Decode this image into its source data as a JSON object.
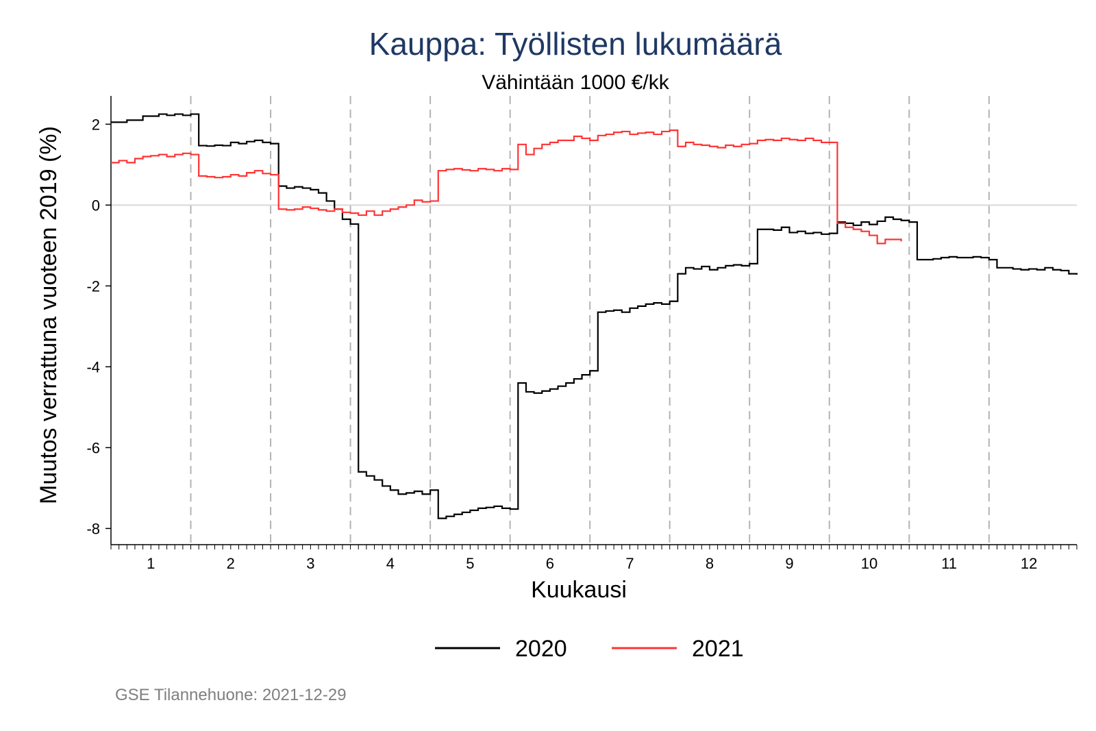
{
  "chart_data": {
    "type": "line",
    "title": "Kauppa: Työllisten lukumäärä",
    "subtitle": "Vähintään 1000 €/kk",
    "xlabel": "Kuukausi",
    "ylabel": "Muutos verrattuna vuoteen 2019 (%)",
    "x_ticks": [
      "1",
      "2",
      "3",
      "4",
      "5",
      "6",
      "7",
      "8",
      "9",
      "10",
      "11",
      "12"
    ],
    "y_ticks": [
      2,
      0,
      -2,
      -4,
      -6,
      -8
    ],
    "xlim": [
      0.5,
      12.6
    ],
    "ylim": [
      -8.4,
      2.7
    ],
    "grid": false,
    "reference_line": 0,
    "month_separators": "dashed",
    "legend_position": "bottom",
    "note": "GSE Tilannehuone: 2021-12-29",
    "series": [
      {
        "name": "2020",
        "color": "#000000",
        "x": [
          0.5,
          0.6,
          0.7,
          0.8,
          0.9,
          1.0,
          1.1,
          1.2,
          1.3,
          1.4,
          1.5,
          1.6,
          1.7,
          1.8,
          1.9,
          2.0,
          2.1,
          2.2,
          2.3,
          2.4,
          2.5,
          2.6,
          2.7,
          2.8,
          2.9,
          3.0,
          3.1,
          3.2,
          3.3,
          3.4,
          3.5,
          3.6,
          3.7,
          3.8,
          3.9,
          4.0,
          4.1,
          4.2,
          4.3,
          4.4,
          4.5,
          4.6,
          4.7,
          4.8,
          4.9,
          5.0,
          5.1,
          5.2,
          5.3,
          5.4,
          5.5,
          5.6,
          5.7,
          5.8,
          5.9,
          6.0,
          6.1,
          6.2,
          6.3,
          6.4,
          6.5,
          6.6,
          6.7,
          6.8,
          6.9,
          7.0,
          7.1,
          7.2,
          7.3,
          7.4,
          7.5,
          7.6,
          7.7,
          7.8,
          7.9,
          8.0,
          8.1,
          8.2,
          8.3,
          8.4,
          8.5,
          8.6,
          8.7,
          8.8,
          8.9,
          9.0,
          9.1,
          9.2,
          9.3,
          9.4,
          9.5,
          9.6,
          9.7,
          9.8,
          9.9,
          10.0,
          10.1,
          10.2,
          10.3,
          10.4,
          10.5,
          10.6,
          10.7,
          10.8,
          10.9,
          11.0,
          11.1,
          11.2,
          11.3,
          11.4,
          11.5,
          11.6,
          11.7,
          11.8,
          11.9,
          12.0,
          12.1,
          12.2,
          12.3,
          12.4,
          12.5,
          12.6
        ],
        "values": [
          2.05,
          2.05,
          2.1,
          2.1,
          2.2,
          2.2,
          2.25,
          2.22,
          2.25,
          2.22,
          2.25,
          1.47,
          1.46,
          1.48,
          1.47,
          1.55,
          1.52,
          1.57,
          1.6,
          1.55,
          1.52,
          0.47,
          0.42,
          0.45,
          0.42,
          0.38,
          0.3,
          0.1,
          -0.1,
          -0.35,
          -0.47,
          -6.6,
          -6.7,
          -6.8,
          -6.95,
          -7.05,
          -7.15,
          -7.12,
          -7.08,
          -7.15,
          -7.05,
          -7.75,
          -7.7,
          -7.65,
          -7.6,
          -7.55,
          -7.5,
          -7.48,
          -7.45,
          -7.5,
          -7.52,
          -4.4,
          -4.62,
          -4.65,
          -4.6,
          -4.55,
          -4.48,
          -4.4,
          -4.3,
          -4.2,
          -4.1,
          -2.65,
          -2.62,
          -2.6,
          -2.65,
          -2.55,
          -2.5,
          -2.45,
          -2.42,
          -2.45,
          -2.38,
          -1.7,
          -1.55,
          -1.58,
          -1.52,
          -1.6,
          -1.55,
          -1.5,
          -1.48,
          -1.5,
          -1.45,
          -0.6,
          -0.6,
          -0.62,
          -0.55,
          -0.68,
          -0.65,
          -0.7,
          -0.68,
          -0.72,
          -0.7,
          -0.42,
          -0.45,
          -0.5,
          -0.42,
          -0.48,
          -0.4,
          -0.3,
          -0.35,
          -0.38,
          -0.42,
          -1.35,
          -1.35,
          -1.33,
          -1.3,
          -1.28,
          -1.3,
          -1.3,
          -1.28,
          -1.3,
          -1.35,
          -1.55,
          -1.55,
          -1.58,
          -1.6,
          -1.58,
          -1.6,
          -1.55,
          -1.6,
          -1.62,
          -1.7,
          -1.72
        ]
      },
      {
        "name": "2021",
        "color": "#ff3333",
        "x": [
          0.5,
          0.6,
          0.7,
          0.8,
          0.9,
          1.0,
          1.1,
          1.2,
          1.3,
          1.4,
          1.5,
          1.6,
          1.7,
          1.8,
          1.9,
          2.0,
          2.1,
          2.2,
          2.3,
          2.4,
          2.5,
          2.6,
          2.7,
          2.8,
          2.9,
          3.0,
          3.1,
          3.2,
          3.3,
          3.4,
          3.5,
          3.6,
          3.7,
          3.8,
          3.9,
          4.0,
          4.1,
          4.2,
          4.3,
          4.4,
          4.5,
          4.6,
          4.7,
          4.8,
          4.9,
          5.0,
          5.1,
          5.2,
          5.3,
          5.4,
          5.5,
          5.6,
          5.7,
          5.8,
          5.9,
          6.0,
          6.1,
          6.2,
          6.3,
          6.4,
          6.5,
          6.6,
          6.7,
          6.8,
          6.9,
          7.0,
          7.1,
          7.2,
          7.3,
          7.4,
          7.5,
          7.6,
          7.7,
          7.8,
          7.9,
          8.0,
          8.1,
          8.2,
          8.3,
          8.4,
          8.5,
          8.6,
          8.7,
          8.8,
          8.9,
          9.0,
          9.1,
          9.2,
          9.3,
          9.4,
          9.5,
          9.6,
          9.7,
          9.8,
          9.9,
          10.0,
          10.1,
          10.2,
          10.3,
          10.4
        ],
        "values": [
          1.05,
          1.1,
          1.05,
          1.15,
          1.2,
          1.22,
          1.25,
          1.2,
          1.25,
          1.28,
          1.25,
          0.72,
          0.7,
          0.68,
          0.7,
          0.75,
          0.72,
          0.8,
          0.85,
          0.78,
          0.75,
          -0.1,
          -0.12,
          -0.1,
          -0.05,
          -0.08,
          -0.12,
          -0.15,
          -0.1,
          -0.18,
          -0.2,
          -0.25,
          -0.15,
          -0.25,
          -0.15,
          -0.1,
          -0.05,
          0.0,
          0.12,
          0.08,
          0.1,
          0.85,
          0.88,
          0.9,
          0.87,
          0.85,
          0.9,
          0.88,
          0.85,
          0.9,
          0.88,
          1.5,
          1.25,
          1.4,
          1.5,
          1.55,
          1.6,
          1.6,
          1.7,
          1.65,
          1.6,
          1.72,
          1.75,
          1.8,
          1.82,
          1.75,
          1.78,
          1.8,
          1.75,
          1.82,
          1.85,
          1.45,
          1.55,
          1.5,
          1.48,
          1.45,
          1.42,
          1.48,
          1.45,
          1.5,
          1.52,
          1.6,
          1.62,
          1.6,
          1.65,
          1.62,
          1.6,
          1.65,
          1.6,
          1.55,
          1.55,
          -0.45,
          -0.55,
          -0.6,
          -0.65,
          -0.75,
          -0.95,
          -0.85,
          -0.85,
          -0.9
        ]
      }
    ]
  }
}
